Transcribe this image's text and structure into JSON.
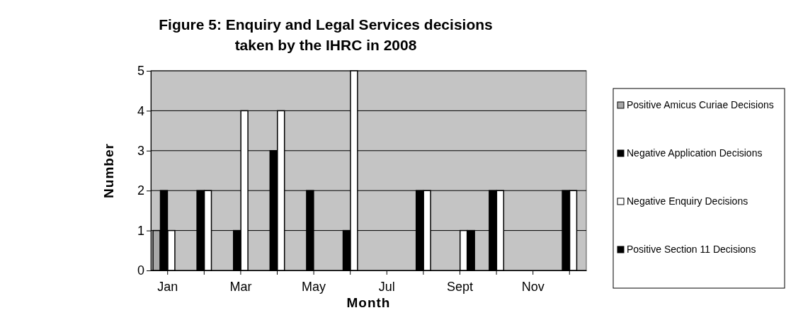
{
  "chart_data": {
    "type": "bar",
    "title": "Figure 5: Enquiry and Legal Services decisions taken by the IHRC in 2008",
    "xlabel": "Month",
    "ylabel": "Number",
    "categories": [
      "Jan",
      null,
      "Mar",
      null,
      "May",
      null,
      "Jul",
      null,
      "Sept",
      null,
      "Nov",
      null
    ],
    "series": [
      {
        "name": "Positive Amicus Curiae Decisions",
        "color": "#a8a8a8",
        "values": [
          1,
          0,
          0,
          0,
          0,
          0,
          0,
          0,
          0,
          0,
          0,
          0
        ]
      },
      {
        "name": "Negative Application Decisions",
        "color": "#000000",
        "values": [
          2,
          2,
          1,
          3,
          2,
          1,
          0,
          2,
          0,
          2,
          0,
          2
        ]
      },
      {
        "name": "Negative Enquiry Decisions",
        "color": "#ffffff",
        "values": [
          1,
          2,
          4,
          4,
          0,
          5,
          0,
          2,
          1,
          2,
          0,
          2
        ]
      },
      {
        "name": "Positive Section 11 Decisions",
        "color": "#000000",
        "values": [
          0,
          0,
          0,
          0,
          0,
          0,
          0,
          0,
          1,
          0,
          0,
          0
        ]
      }
    ],
    "ylim": [
      0,
      5
    ],
    "yticks": [
      0,
      1,
      2,
      3,
      4,
      5
    ],
    "grid": "y",
    "legend": "right"
  }
}
